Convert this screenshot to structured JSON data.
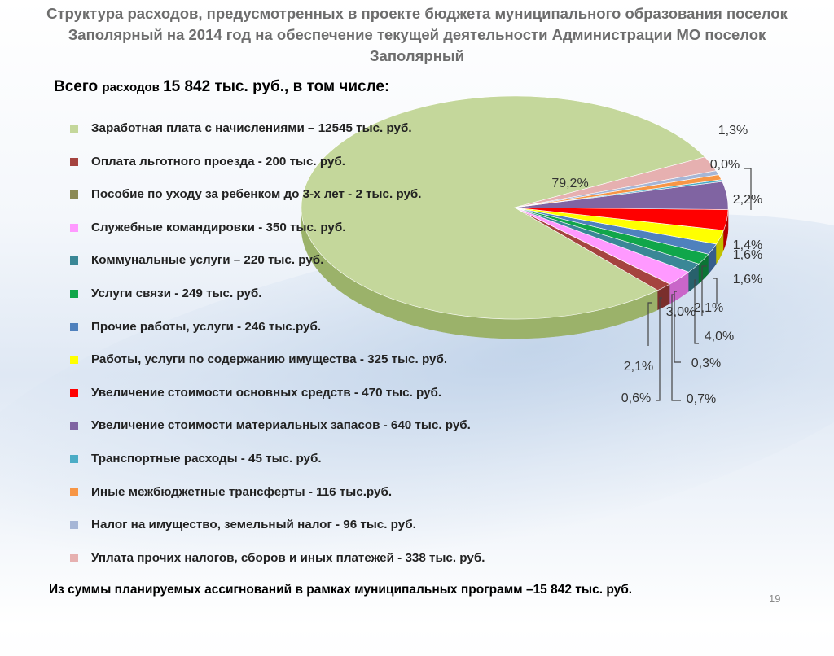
{
  "slide": {
    "title": "Структура расходов, предусмотренных в проекте бюджета муниципального образования поселок Заполярный на 2014 год на обеспечение текущей деятельности Администрации МО поселок Заполярный",
    "total_prefix": "Всего ",
    "total_small": "расходов ",
    "total_rest": "15 842 тыс. руб., в том числе:",
    "footer": "Из суммы планируемых ассигнований в рамках муниципальных программ –15 842 тыс. руб.",
    "page_number": "19"
  },
  "chart_data": {
    "type": "pie",
    "unit": "тыс. руб.",
    "total": 15842,
    "slices": [
      {
        "label": "Заработная плата с начислениями – 12545 тыс. руб.",
        "value": 12545,
        "percent": "79,2%",
        "color": "#c4d79b",
        "side": "#9bb26a"
      },
      {
        "label": "Оплата льготного проезда - 200 тыс. руб.",
        "value": 200,
        "percent": "1,3%",
        "color": "#a5433f",
        "side": "#7a2f2c"
      },
      {
        "label": "Пособие по уходу за ребенком до 3-х лет - 2 тыс. руб.",
        "value": 2,
        "percent": "0,0%",
        "color": "#8b8a55",
        "side": "#66663e"
      },
      {
        "label": "Служебные командировки - 350 тыс. руб.",
        "value": 350,
        "percent": "2,2%",
        "color": "#ff99ff",
        "side": "#c966c9"
      },
      {
        "label": "Коммунальные услуги – 220 тыс. руб.",
        "value": 220,
        "percent": "1,4%",
        "color": "#3a8796",
        "side": "#28616c"
      },
      {
        "label": "Услуги связи - 249 тыс. руб.",
        "value": 249,
        "percent": "1,6%",
        "color": "#10a64a",
        "side": "#0b7434"
      },
      {
        "label": "Прочие работы, услуги - 246 тыс.руб.",
        "value": 246,
        "percent": "1,6%",
        "color": "#4f81bd",
        "side": "#365d8b"
      },
      {
        "label": "Работы, услуги по содержанию имущества - 325 тыс. руб.",
        "value": 325,
        "percent": "2,1%",
        "color": "#ffff00",
        "side": "#c2c200"
      },
      {
        "label": "Увеличение стоимости основных средств - 470 тыс. руб.",
        "value": 470,
        "percent": "3,0%",
        "color": "#ff0000",
        "side": "#b30000"
      },
      {
        "label": "Увеличение стоимости материальных запасов - 640 тыс. руб.",
        "value": 640,
        "percent": "4,0%",
        "color": "#8064a2",
        "side": "#5a4674"
      },
      {
        "label": "Транспортные расходы  - 45 тыс. руб.",
        "value": 45,
        "percent": "0,3%",
        "color": "#4bacc6",
        "side": "#347b8e"
      },
      {
        "label": "Иные межбюджетные трансферты - 116 тыс.руб.",
        "value": 116,
        "percent": "0,7%",
        "color": "#f79646",
        "side": "#b96a2b"
      },
      {
        "label": "Налог на имущество, земельный налог - 96 тыс. руб.",
        "value": 96,
        "percent": "0,6%",
        "color": "#a6b6d6",
        "side": "#7a89a8"
      },
      {
        "label": "Уплата прочих налогов, сборов и иных платежей - 338 тыс. руб.",
        "value": 338,
        "percent": "2,1%",
        "color": "#e6b0b0",
        "side": "#b07f7f"
      }
    ]
  }
}
